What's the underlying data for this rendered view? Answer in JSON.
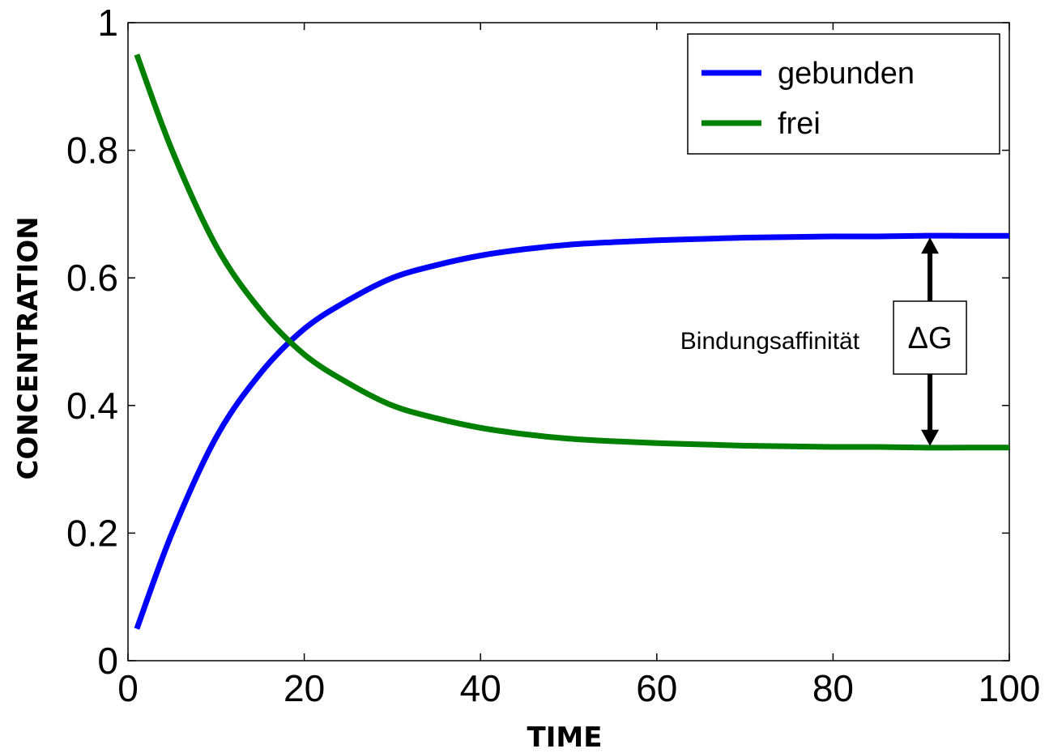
{
  "chart_data": {
    "type": "line",
    "xlabel": "TIME",
    "ylabel": "CONCENTRATION",
    "xlim": [
      0,
      100
    ],
    "ylim": [
      0,
      1
    ],
    "x_ticks": [
      "0",
      "20",
      "40",
      "60",
      "80",
      "100"
    ],
    "y_ticks": [
      "0",
      "0.2",
      "0.4",
      "0.6",
      "0.8",
      "1"
    ],
    "grid": false,
    "legend_position": "top-right",
    "x": [
      1,
      5,
      10,
      15,
      20,
      25,
      30,
      35,
      40,
      45,
      50,
      55,
      60,
      65,
      70,
      75,
      80,
      85,
      90,
      95,
      100
    ],
    "series": [
      {
        "name": "gebunden",
        "color": "#0000ff",
        "values": [
          0.05,
          0.2,
          0.35,
          0.45,
          0.52,
          0.565,
          0.6,
          0.62,
          0.635,
          0.645,
          0.652,
          0.656,
          0.659,
          0.661,
          0.663,
          0.664,
          0.665,
          0.665,
          0.666,
          0.666,
          0.666
        ]
      },
      {
        "name": "frei",
        "color": "#008000",
        "values": [
          0.95,
          0.8,
          0.65,
          0.55,
          0.48,
          0.435,
          0.4,
          0.38,
          0.365,
          0.355,
          0.348,
          0.344,
          0.341,
          0.339,
          0.337,
          0.336,
          0.335,
          0.335,
          0.334,
          0.334,
          0.334
        ]
      }
    ],
    "annotations": {
      "label": "Bindungsaffinität",
      "box_text": "ΔG",
      "arrow_x": 91,
      "arrow_from": 0.666,
      "arrow_to": 0.334
    }
  }
}
